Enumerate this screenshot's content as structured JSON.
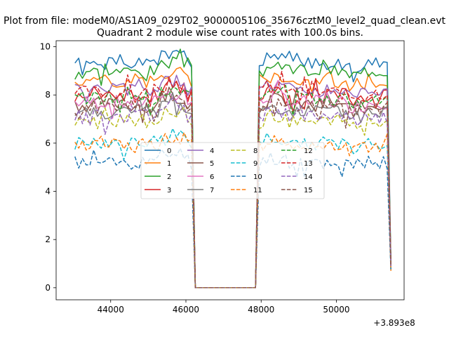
{
  "chart_data": {
    "type": "line",
    "suptitle": "Plot from file: modeM0/AS1A09_029T02_9000005106_35676cztM0_level2_quad_clean.evt",
    "title": "Quadrant 2 module wise count rates with 100.0s bins.",
    "xlabel": "",
    "ylabel": "",
    "x_offset_label": "+3.893e8",
    "xlim": [
      42550,
      51800
    ],
    "ylim": [
      -0.5,
      10.25
    ],
    "xticks": [
      44000,
      46000,
      48000,
      50000
    ],
    "xtick_labels": [
      "44000",
      "46000",
      "48000",
      "50000"
    ],
    "yticks": [
      0,
      2,
      4,
      6,
      8,
      10
    ],
    "ytick_labels": [
      "0",
      "2",
      "4",
      "6",
      "8",
      "10"
    ],
    "legend_position": "center",
    "gap": {
      "start": 46200,
      "end": 47900
    },
    "series": [
      {
        "name": "0",
        "color": "#1f77b4",
        "dash": "solid",
        "level": 9.3,
        "amp": 0.25,
        "end": 1.1,
        "seed": 1
      },
      {
        "name": "1",
        "color": "#ff7f0e",
        "dash": "solid",
        "level": 8.6,
        "amp": 0.3,
        "end": 1.0,
        "seed": 2
      },
      {
        "name": "2",
        "color": "#2ca02c",
        "dash": "solid",
        "level": 9.0,
        "amp": 0.25,
        "end": 1.0,
        "seed": 3
      },
      {
        "name": "3",
        "color": "#d62728",
        "dash": "solid",
        "level": 8.0,
        "amp": 0.3,
        "end": 0.9,
        "seed": 4
      },
      {
        "name": "4",
        "color": "#9467bd",
        "dash": "solid",
        "level": 8.2,
        "amp": 0.3,
        "end": 0.9,
        "seed": 5
      },
      {
        "name": "5",
        "color": "#8c564b",
        "dash": "solid",
        "level": 7.6,
        "amp": 0.3,
        "end": 0.9,
        "seed": 6
      },
      {
        "name": "6",
        "color": "#e377c2",
        "dash": "solid",
        "level": 7.7,
        "amp": 0.3,
        "end": 0.9,
        "seed": 7
      },
      {
        "name": "7",
        "color": "#7f7f7f",
        "dash": "solid",
        "level": 7.3,
        "amp": 0.3,
        "end": 0.9,
        "seed": 8
      },
      {
        "name": "8",
        "color": "#bcbd22",
        "dash": "dashed",
        "level": 6.9,
        "amp": 0.3,
        "end": 0.8,
        "seed": 9
      },
      {
        "name": "9",
        "color": "#17becf",
        "dash": "dashed",
        "level": 6.0,
        "amp": 0.3,
        "end": 0.7,
        "seed": 10
      },
      {
        "name": "10",
        "color": "#1f77b4",
        "dash": "dashed",
        "level": 5.2,
        "amp": 0.3,
        "end": 0.7,
        "seed": 11
      },
      {
        "name": "11",
        "color": "#ff7f0e",
        "dash": "dashed",
        "level": 5.9,
        "amp": 0.3,
        "end": 0.7,
        "seed": 12
      },
      {
        "name": "12",
        "color": "#2ca02c",
        "dash": "dashed",
        "level": 7.9,
        "amp": 0.3,
        "end": 0.9,
        "seed": 13
      },
      {
        "name": "13",
        "color": "#d62728",
        "dash": "dashed",
        "level": 8.1,
        "amp": 0.3,
        "end": 0.9,
        "seed": 14
      },
      {
        "name": "14",
        "color": "#9467bd",
        "dash": "dashed",
        "level": 7.1,
        "amp": 0.3,
        "end": 0.9,
        "seed": 15
      },
      {
        "name": "15",
        "color": "#8c564b",
        "dash": "dashed",
        "level": 7.5,
        "amp": 0.3,
        "end": 0.9,
        "seed": 16
      }
    ]
  }
}
